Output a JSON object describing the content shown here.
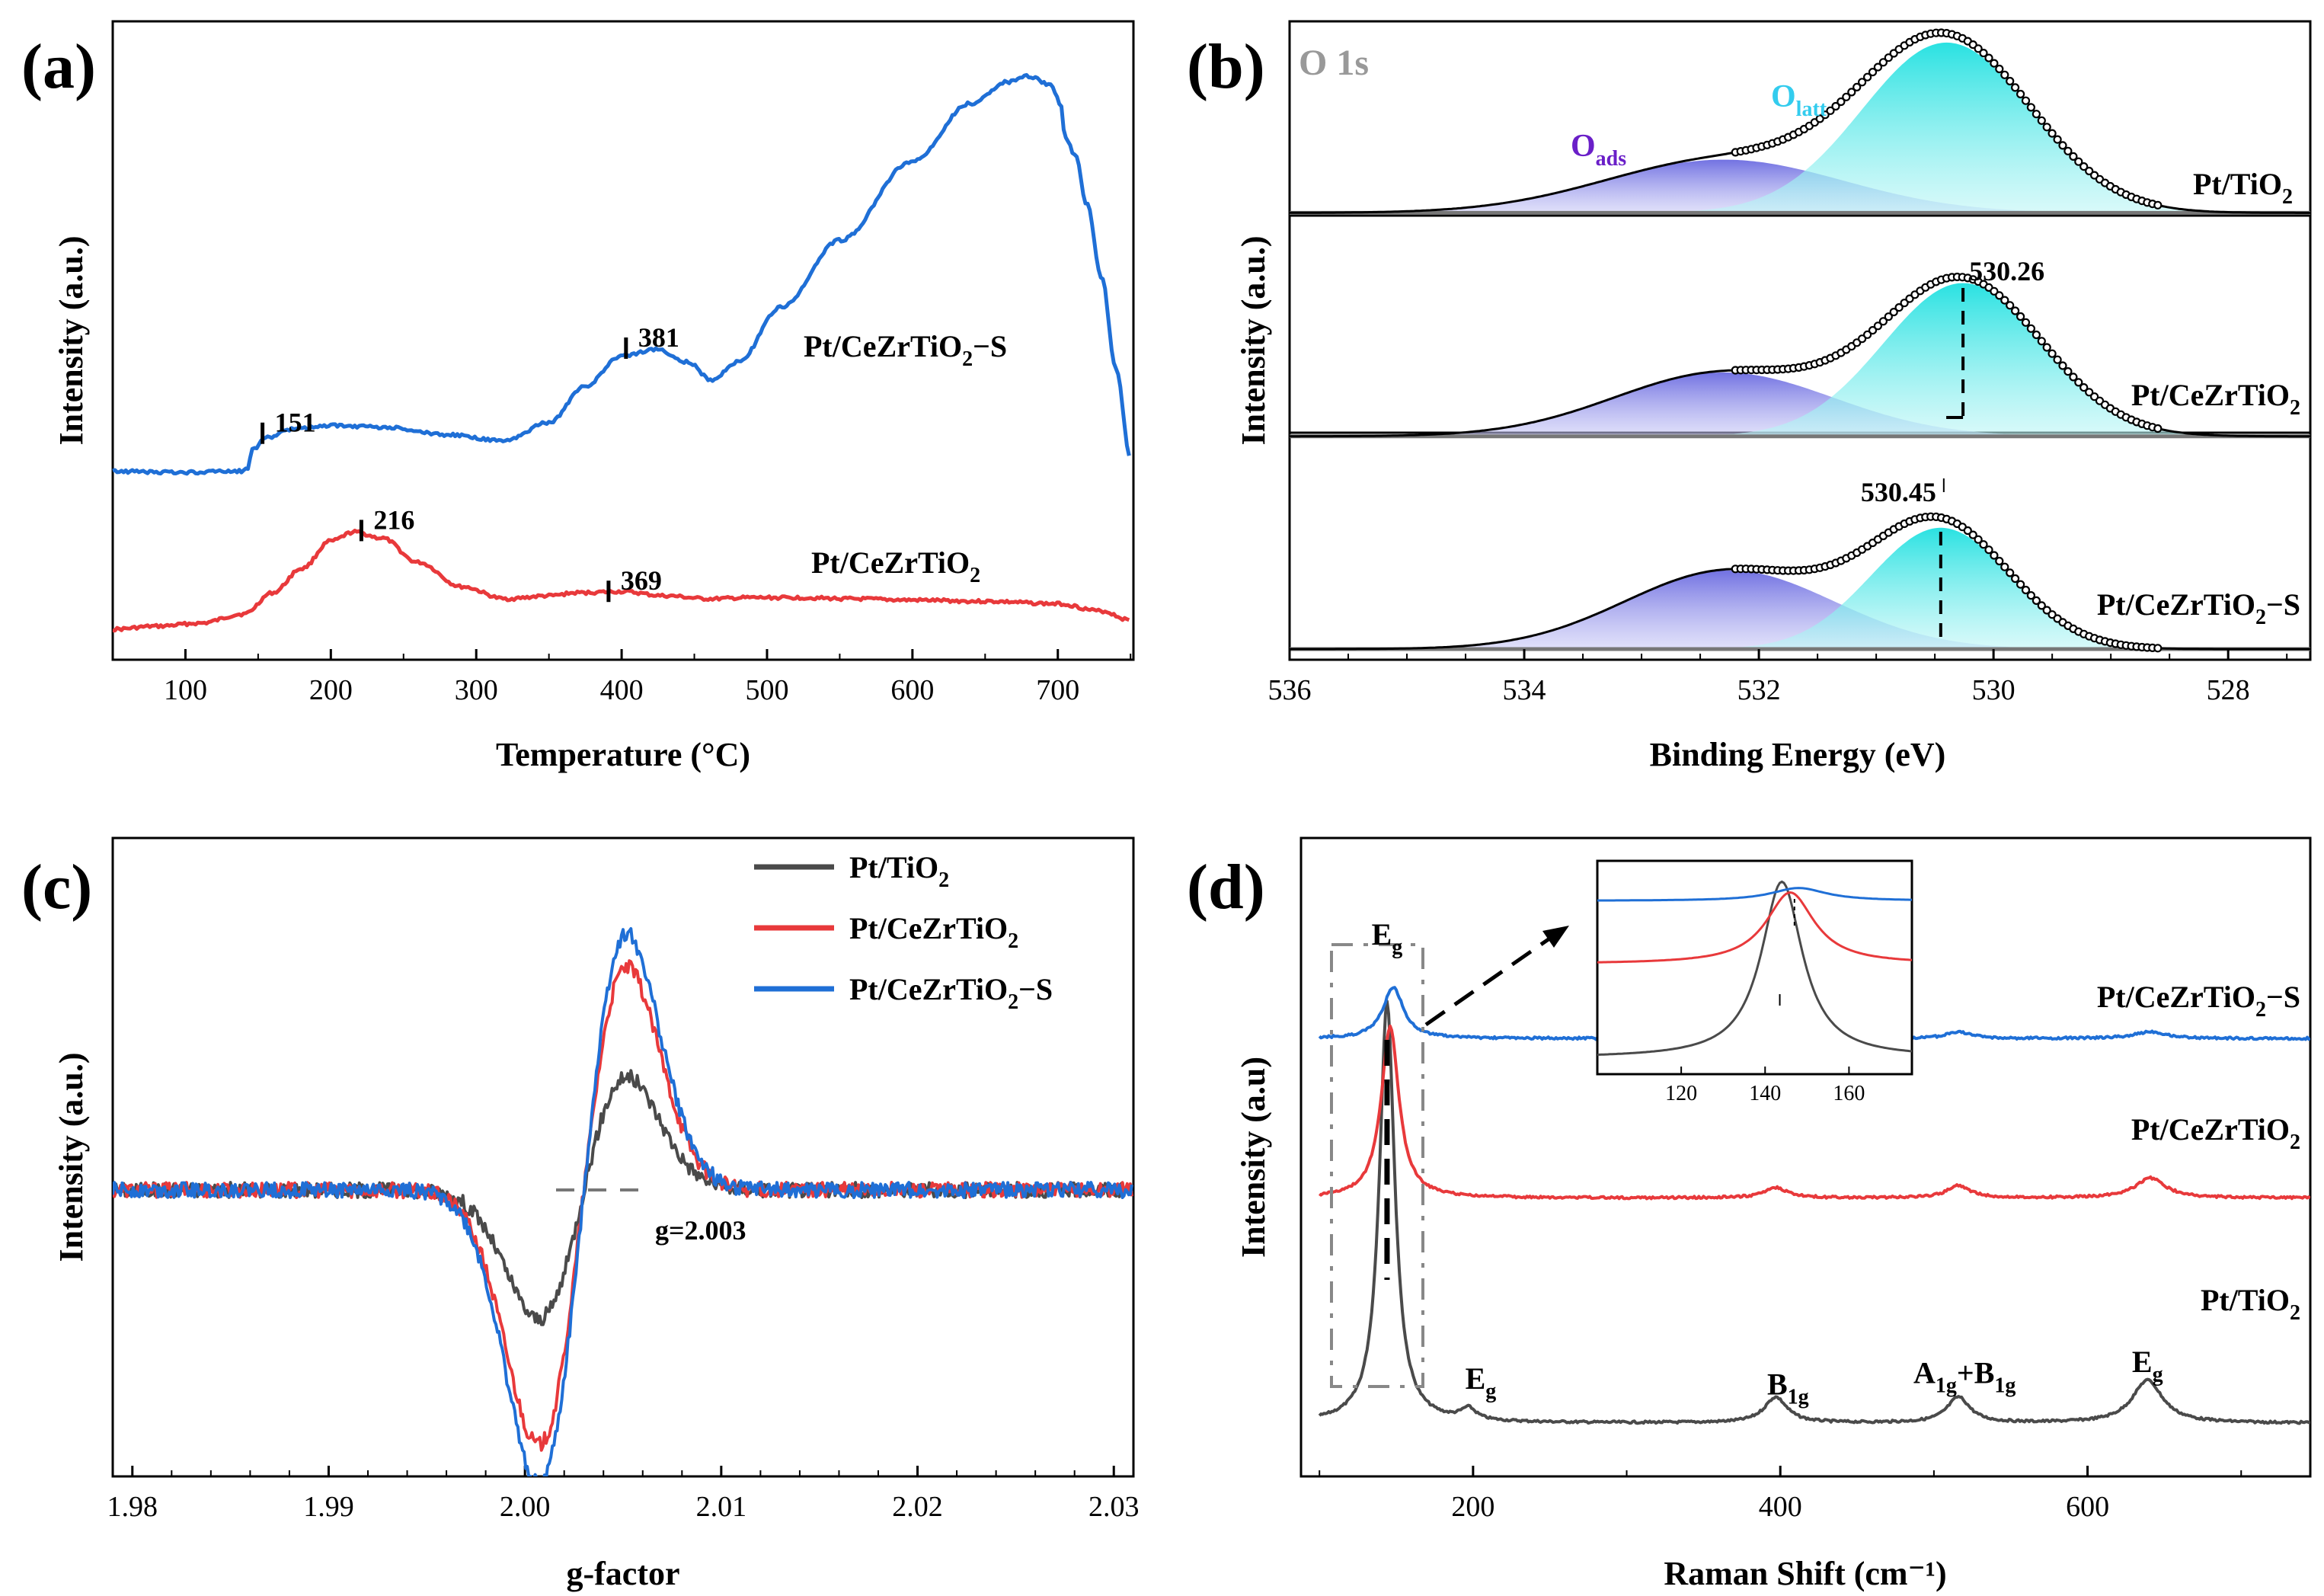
{
  "colors": {
    "black": "#4a4a4a",
    "red": "#e8393b",
    "blue": "#1f6fd6",
    "purple": "#7070e0",
    "cyan": "#26e0e0",
    "cyan_label": "#33ccee",
    "oads_label": "#6a1fc8",
    "o1s_label": "#999999"
  },
  "chart_data": [
    {
      "id": "a",
      "panel_label": "(a)",
      "type": "line",
      "xlabel": "Temperature (°C)",
      "ylabel": "Intensity (a.u.)",
      "xlim": [
        50,
        752
      ],
      "ylim": [
        0,
        1
      ],
      "xticks": [
        100,
        200,
        300,
        400,
        500,
        600,
        700
      ],
      "series": [
        {
          "name": "Pt/CeZrTiO2",
          "label_main": "Pt/CeZrTiO",
          "label_sub": "2",
          "label_tail": "",
          "color": "red",
          "x": [
            50,
            80,
            110,
            140,
            160,
            180,
            200,
            216,
            235,
            260,
            290,
            320,
            350,
            369,
            400,
            430,
            460,
            490,
            520,
            560,
            600,
            650,
            700,
            730,
            750
          ],
          "y": [
            0.02,
            0.025,
            0.03,
            0.045,
            0.08,
            0.12,
            0.165,
            0.18,
            0.17,
            0.13,
            0.09,
            0.07,
            0.075,
            0.08,
            0.082,
            0.075,
            0.07,
            0.072,
            0.072,
            0.07,
            0.068,
            0.066,
            0.062,
            0.05,
            0.035
          ]
        },
        {
          "name": "Pt/CeZrTiO2−S",
          "label_main": "Pt/CeZrTiO",
          "label_sub": "2",
          "label_tail": "−S",
          "color": "blue",
          "x": [
            50,
            100,
            138,
            143,
            146,
            155,
            175,
            200,
            240,
            280,
            320,
            350,
            375,
            400,
            425,
            445,
            462,
            480,
            510,
            550,
            600,
            640,
            665,
            680,
            695,
            702,
            705,
            712,
            720,
            730,
            740,
            750
          ],
          "y": [
            0.28,
            0.278,
            0.28,
            0.285,
            0.315,
            0.335,
            0.35,
            0.355,
            0.352,
            0.34,
            0.33,
            0.36,
            0.42,
            0.47,
            0.48,
            0.46,
            0.43,
            0.46,
            0.55,
            0.66,
            0.79,
            0.885,
            0.92,
            0.93,
            0.915,
            0.885,
            0.83,
            0.8,
            0.72,
            0.6,
            0.45,
            0.3
          ]
        }
      ],
      "annotations": [
        {
          "text": "151",
          "x": 153,
          "y": 0.36
        },
        {
          "text": "381",
          "x": 403,
          "y": 0.5
        },
        {
          "text": "216",
          "x": 221,
          "y": 0.2
        },
        {
          "text": "369",
          "x": 391,
          "y": 0.1
        }
      ]
    },
    {
      "id": "b",
      "panel_label": "(b)",
      "type": "area",
      "title": "O 1s",
      "xlabel": "Binding Energy (eV)",
      "ylabel": "Intensity (a.u.)",
      "xlim": [
        536,
        527.3
      ],
      "ylim": [
        0,
        3
      ],
      "xticks": [
        536,
        534,
        532,
        530,
        528
      ],
      "component_labels": {
        "ads_main": "O",
        "ads_sub": "ads",
        "latt_main": "O",
        "latt_sub": "latt"
      },
      "series": [
        {
          "name": "Pt/TiO2",
          "label_main": "Pt/TiO",
          "label_sub": "2",
          "label_tail": "",
          "offset": 2.1,
          "baseline_slope": 0.0,
          "oads": {
            "center": 532.3,
            "fwhm": 2.4,
            "height": 0.25
          },
          "olatt": {
            "center": 530.4,
            "fwhm": 1.7,
            "height": 0.8
          }
        },
        {
          "name": "Pt/CeZrTiO2",
          "label_main": "Pt/CeZrTiO",
          "label_sub": "2",
          "label_tail": "",
          "offset": 1.05,
          "baseline_slope": 0.0,
          "oads": {
            "center": 532.3,
            "fwhm": 2.2,
            "height": 0.3
          },
          "olatt": {
            "center": 530.26,
            "fwhm": 1.6,
            "height": 0.72
          }
        },
        {
          "name": "Pt/CeZrTiO2−S",
          "label_main": "Pt/CeZrTiO",
          "label_sub": "2",
          "label_tail": "−S",
          "offset": 0.05,
          "baseline_slope": 0.0,
          "oads": {
            "center": 532.25,
            "fwhm": 2.1,
            "height": 0.37
          },
          "olatt": {
            "center": 530.45,
            "fwhm": 1.4,
            "height": 0.57
          }
        }
      ],
      "annotations": [
        {
          "text": "530.26",
          "x": 530.26
        },
        {
          "text": "530.45",
          "x": 530.45
        }
      ]
    },
    {
      "id": "c",
      "panel_label": "(c)",
      "type": "line",
      "xlabel": "g-factor",
      "ylabel": "Intensity (a.u.)",
      "xlim": [
        1.979,
        2.031
      ],
      "ylim": [
        -1.1,
        1.0
      ],
      "xticks": [
        1.98,
        1.99,
        2.0,
        2.01,
        2.02,
        2.03
      ],
      "annotation": "g=2.003",
      "center_g": 2.003,
      "series": [
        {
          "name": "Pt/TiO2",
          "label_main": "Pt/TiO",
          "label_sub": "2",
          "label_tail": "",
          "color": "black",
          "x0": 2.003,
          "width": 0.0022,
          "amp": 0.37
        },
        {
          "name": "Pt/CeZrTiO2",
          "label_main": "Pt/CeZrTiO",
          "label_sub": "2",
          "label_tail": "",
          "color": "red",
          "x0": 2.003,
          "width": 0.0022,
          "amp": 0.73
        },
        {
          "name": "Pt/CeZrTiO2−S",
          "label_main": "Pt/CeZrTiO",
          "label_sub": "2",
          "label_tail": "−S",
          "color": "blue",
          "x0": 2.003,
          "width": 0.0022,
          "amp": 0.84
        }
      ]
    },
    {
      "id": "d",
      "panel_label": "(d)",
      "type": "line",
      "xlabel": "Raman Shift (cm⁻¹)",
      "ylabel": "Intensity (a.u)",
      "xlim": [
        88,
        745
      ],
      "ylim": [
        0,
        1
      ],
      "xticks": [
        200,
        400,
        600
      ],
      "series": [
        {
          "name": "Pt/TiO2",
          "label_main": "Pt/TiO",
          "label_sub": "2",
          "label_tail": "",
          "color": "black",
          "base": 0.04,
          "peaks": [
            [
              144,
              0.74,
              6
            ],
            [
              197,
              0.02,
              6
            ],
            [
              397,
              0.045,
              9
            ],
            [
              516,
              0.045,
              9
            ],
            [
              639,
              0.075,
              12
            ]
          ]
        },
        {
          "name": "Pt/CeZrTiO2",
          "label_main": "Pt/CeZrTiO",
          "label_sub": "2",
          "label_tail": "",
          "color": "red",
          "base": 0.435,
          "peaks": [
            [
              146,
              0.3,
              7
            ],
            [
              397,
              0.018,
              9
            ],
            [
              516,
              0.022,
              9
            ],
            [
              641,
              0.035,
              12
            ]
          ]
        },
        {
          "name": "Pt/CeZrTiO2−S",
          "label_main": "Pt/CeZrTiO",
          "label_sub": "2",
          "label_tail": "−S",
          "color": "blue",
          "base": 0.715,
          "peaks": [
            [
              148,
              0.09,
              8
            ],
            [
              397,
              0.008,
              9
            ],
            [
              516,
              0.012,
              9
            ],
            [
              641,
              0.012,
              12
            ]
          ]
        }
      ],
      "peak_labels": [
        {
          "main": "E",
          "sub": "g",
          "x": 144,
          "y": 0.88
        },
        {
          "main": "E",
          "sub": "g",
          "x": 205,
          "y": 0.1
        },
        {
          "main": "B",
          "sub": "1g",
          "x": 405,
          "y": 0.09
        },
        {
          "main": "A",
          "sub": "1g",
          "mid": "+B",
          "sub2": "1g",
          "x": 520,
          "y": 0.11
        },
        {
          "main": "E",
          "sub": "g",
          "x": 639,
          "y": 0.13
        }
      ],
      "inset": {
        "xlim": [
          100,
          175
        ],
        "xticks": [
          120,
          140,
          160
        ]
      }
    }
  ]
}
